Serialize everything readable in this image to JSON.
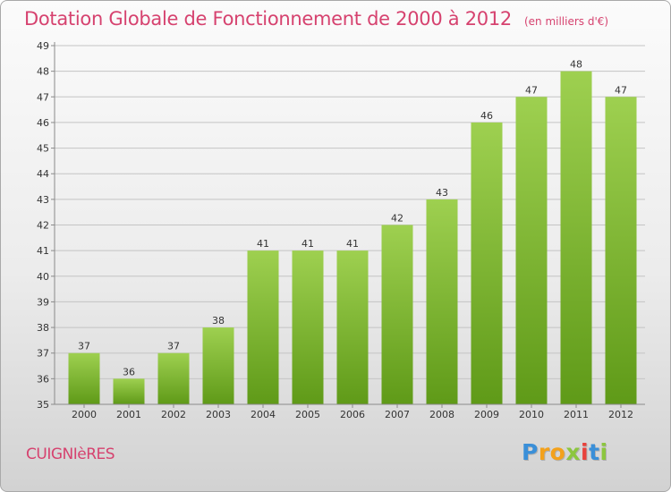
{
  "chart_data": {
    "type": "bar",
    "title": "Dotation Globale de Fonctionnement de 2000 à 2012",
    "subtitle": "(en milliers d'€)",
    "categories": [
      "2000",
      "2001",
      "2002",
      "2003",
      "2004",
      "2005",
      "2006",
      "2007",
      "2008",
      "2009",
      "2010",
      "2011",
      "2012"
    ],
    "values": [
      37,
      36,
      37,
      38,
      41,
      41,
      41,
      42,
      43,
      46,
      47,
      48,
      47
    ],
    "data_labels": [
      "37",
      "36",
      "37",
      "38",
      "41",
      "41",
      "41",
      "42",
      "43",
      "46",
      "47",
      "48",
      "47"
    ],
    "y_ticks": [
      "35",
      "36",
      "37",
      "38",
      "39",
      "40",
      "41",
      "42",
      "43",
      "44",
      "45",
      "46",
      "47",
      "48",
      "49"
    ],
    "ylim": [
      35,
      49
    ],
    "xlabel": "",
    "ylabel": "",
    "grid": true,
    "legend": "none",
    "colors": {
      "bar_top": "#9ed050",
      "bar_bottom": "#5f9a18",
      "grid": "#c4c4c4",
      "axis": "#8a8a8a",
      "title": "#d6426f"
    }
  },
  "footer": {
    "commune": "CUIGNIèRES"
  },
  "logo": {
    "text": "Proxiti",
    "letters": [
      "P",
      "r",
      "o",
      "x",
      "i",
      "t",
      "i"
    ]
  }
}
